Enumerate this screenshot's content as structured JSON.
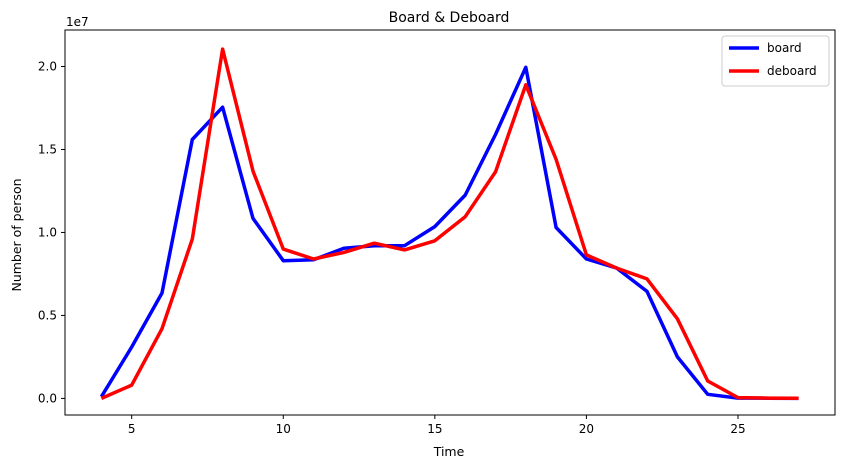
{
  "chart_data": {
    "type": "line",
    "title": "Board & Deboard",
    "xlabel": "Time",
    "ylabel": "Number of person",
    "y_offset_text": "1e7",
    "xlim": [
      2.8,
      28.2
    ],
    "ylim": [
      -1000000,
      22200000
    ],
    "xticks": [
      5,
      10,
      15,
      20,
      25
    ],
    "xtick_labels": [
      "5",
      "10",
      "15",
      "20",
      "25"
    ],
    "yticks": [
      0,
      5000000,
      10000000,
      15000000,
      20000000
    ],
    "ytick_labels": [
      "0.0",
      "0.5",
      "1.0",
      "1.5",
      "2.0"
    ],
    "grid": false,
    "legend_position": "top-right",
    "x": [
      4,
      5,
      6,
      7,
      8,
      9,
      10,
      11,
      12,
      13,
      14,
      15,
      16,
      17,
      18,
      19,
      20,
      21,
      22,
      23,
      24,
      25,
      26,
      27
    ],
    "series": [
      {
        "name": "board",
        "color": "#0000ff",
        "values": [
          100000,
          3100000,
          6350000,
          15600000,
          17550000,
          10850000,
          8300000,
          8350000,
          9050000,
          9200000,
          9200000,
          10350000,
          12250000,
          15900000,
          19950000,
          10300000,
          8400000,
          7850000,
          6450000,
          2500000,
          250000,
          20000,
          10000,
          0
        ]
      },
      {
        "name": "deboard",
        "color": "#ff0000",
        "values": [
          0,
          800000,
          4200000,
          9600000,
          21050000,
          13700000,
          9000000,
          8400000,
          8800000,
          9350000,
          8950000,
          9500000,
          10950000,
          13650000,
          18900000,
          14400000,
          8650000,
          7850000,
          7200000,
          4800000,
          1050000,
          50000,
          20000,
          10000
        ]
      }
    ]
  }
}
